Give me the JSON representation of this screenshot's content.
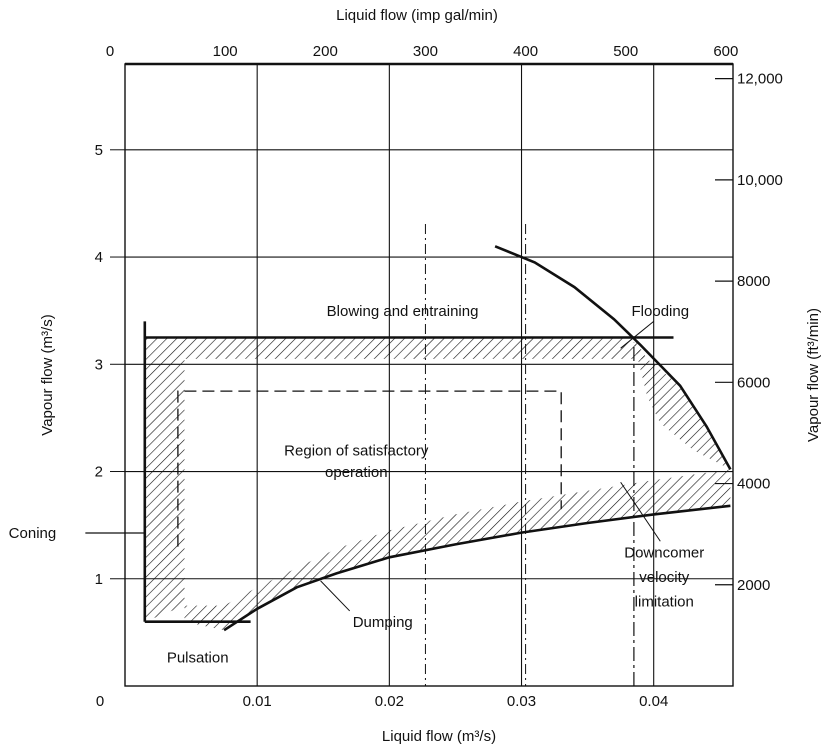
{
  "chart_data": {
    "type": "line",
    "title": "",
    "xlabel": "Liquid flow (m³/s)",
    "ylabel": "Vapour flow (m³/s)",
    "x2label": "Liquid flow (imp gal/min)",
    "y2label": "Vapour flow (ft³/min)",
    "xlim": [
      0,
      0.046
    ],
    "ylim": [
      0,
      5.8
    ],
    "x_ticks": [
      0,
      0.01,
      0.02,
      0.03,
      0.04
    ],
    "x_tick_labels": [
      "0",
      "0.01",
      "0.02",
      "0.03",
      "0.04"
    ],
    "y_ticks": [
      1,
      2,
      3,
      4,
      5
    ],
    "y_tick_labels": [
      "1",
      "2",
      "3",
      "4",
      "5"
    ],
    "x2_ticks_gpm": [
      0,
      100,
      200,
      300,
      400,
      500,
      600
    ],
    "x2_tick_labels": [
      "0",
      "100",
      "200",
      "300",
      "400",
      "500",
      "600"
    ],
    "y2_ticks_cfm": [
      2000,
      4000,
      6000,
      8000,
      10000,
      12000
    ],
    "y2_tick_labels": [
      "2000",
      "4000",
      "6000",
      "8000",
      "10,000",
      "12,000"
    ],
    "grid": true,
    "series": [
      {
        "name": "Blowing and entraining",
        "x": [
          0.0015,
          0.0415
        ],
        "y": [
          3.25,
          3.25
        ]
      },
      {
        "name": "Flooding",
        "x": [
          0.028,
          0.031,
          0.034,
          0.037,
          0.039,
          0.042,
          0.044,
          0.0458
        ],
        "y": [
          4.1,
          3.95,
          3.72,
          3.42,
          3.18,
          2.8,
          2.42,
          2.02
        ]
      },
      {
        "name": "Dumping",
        "x": [
          0.0075,
          0.01,
          0.013,
          0.016,
          0.02,
          0.025,
          0.03,
          0.035,
          0.04,
          0.0458
        ],
        "y": [
          0.52,
          0.72,
          0.92,
          1.05,
          1.2,
          1.32,
          1.43,
          1.52,
          1.6,
          1.68
        ]
      },
      {
        "name": "Pulsation",
        "x": [
          0.0015,
          0.0095
        ],
        "y": [
          0.6,
          0.6
        ]
      },
      {
        "name": "Coning",
        "x": [
          0.0015,
          0.0015
        ],
        "y": [
          0.6,
          3.4
        ]
      },
      {
        "name": "Downcomer velocity limitation",
        "x": [
          0.0385,
          0.0385
        ],
        "y": [
          0,
          3.2
        ]
      }
    ],
    "regions": [
      {
        "name": "Region of satisfactory operation",
        "x": [
          0.004,
          0.033
        ],
        "y": [
          1.3,
          2.75
        ]
      }
    ],
    "annotations": [
      {
        "text": "Blowing and entraining",
        "x": 0.021,
        "y": 3.45
      },
      {
        "text": "Flooding",
        "x": 0.0405,
        "y": 3.45
      },
      {
        "text": "Region of satisfactory",
        "x": 0.0175,
        "y": 2.15
      },
      {
        "text": "operation",
        "x": 0.0175,
        "y": 1.95
      },
      {
        "text": "Dumping",
        "x": 0.0195,
        "y": 0.55
      },
      {
        "text": "Pulsation",
        "x": 0.0055,
        "y": 0.22
      },
      {
        "text": "Coning",
        "x": -0.0088,
        "y": 1.38
      },
      {
        "text": "Downcomer",
        "x": 0.0408,
        "y": 1.2
      },
      {
        "text": "velocity",
        "x": 0.0408,
        "y": 0.97
      },
      {
        "text": "limitation",
        "x": 0.0408,
        "y": 0.74
      }
    ]
  },
  "colors": {
    "ink": "#111111",
    "grid": "#222222",
    "background": "#ffffff"
  }
}
